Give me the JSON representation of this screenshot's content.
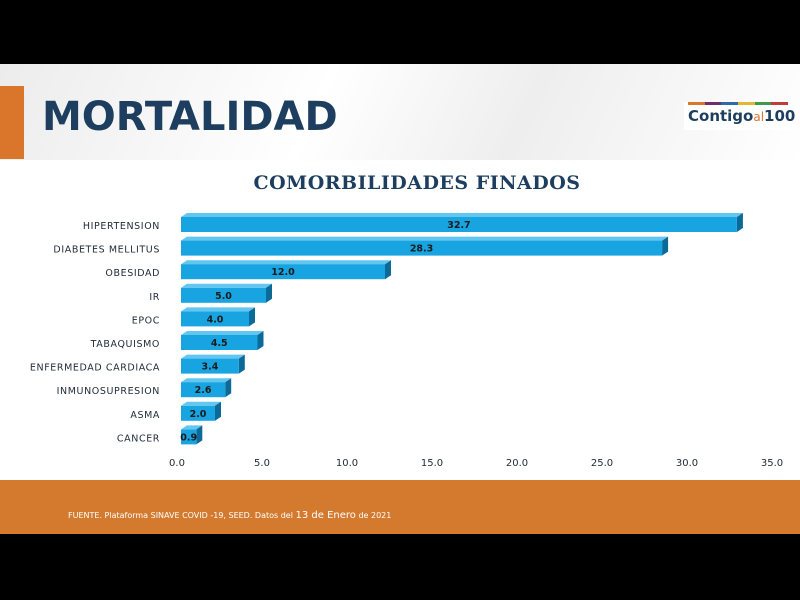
{
  "page": {
    "title": "MORTALIDAD",
    "logo": {
      "main": "Contigo",
      "small": "al",
      "number": "100",
      "stripe_colors": [
        "#d9762b",
        "#6b2f6b",
        "#2f6aa8",
        "#e6b533",
        "#3c9a4a",
        "#c43a3a"
      ]
    },
    "footer": {
      "prefix": "FUENTE. Plataforma SINAVE COVID -19, SEED. Datos del ",
      "big": "13 de Enero",
      "suffix": " de 2021"
    }
  },
  "colors": {
    "bar_front": "#17a4e0",
    "bar_top": "#62c7f0",
    "bar_side": "#0c6a99",
    "accent": "#d9762b",
    "title": "#1d3e5e"
  },
  "chart_data": {
    "type": "bar",
    "orientation": "horizontal",
    "title": "COMORBILIDADES FINADOS",
    "categories": [
      "HIPERTENSION",
      "DIABETES MELLITUS",
      "OBESIDAD",
      "IR",
      "EPOC",
      "TABAQUISMO",
      "ENFERMEDAD CARDIACA",
      "INMUNOSUPRESION",
      "ASMA",
      "CANCER"
    ],
    "values": [
      32.7,
      28.3,
      12.0,
      5.0,
      4.0,
      4.5,
      3.4,
      2.6,
      2.0,
      0.9
    ],
    "value_labels": [
      "32.7",
      "28.3",
      "12.0",
      "5.0",
      "4.0",
      "4.5",
      "3.4",
      "2.6",
      "2.0",
      "0.9"
    ],
    "xlim": [
      0,
      35
    ],
    "xticks": [
      "0.0",
      "5.0",
      "10.0",
      "15.0",
      "20.0",
      "25.0",
      "30.0",
      "35.0"
    ],
    "grid": false,
    "legend": "none",
    "style": "3d"
  }
}
